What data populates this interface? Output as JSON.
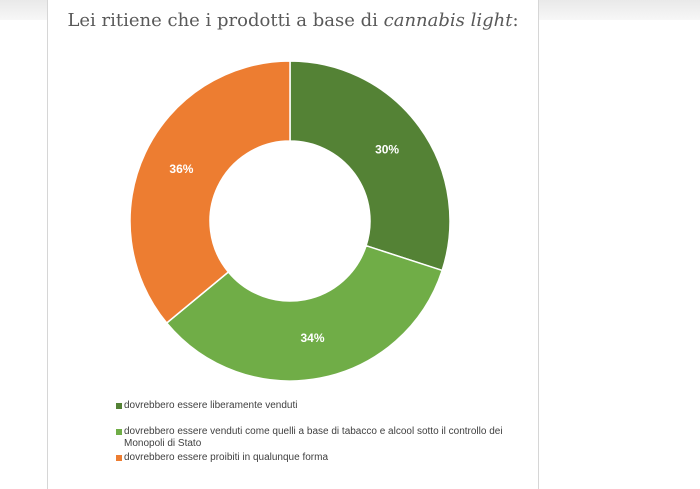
{
  "title": {
    "main": "Lei ritiene che i prodotti a base di ",
    "emphasis": "cannabis light",
    "end": ":"
  },
  "chart_data": {
    "type": "pie",
    "variant": "donut",
    "title": "Lei ritiene che i prodotti a base di cannabis light:",
    "legend_position": "bottom",
    "slices": [
      {
        "label": "dovrebbero essere liberamente venduti",
        "value": 30,
        "display": "30%",
        "color": "#548235"
      },
      {
        "label": "dovrebbero essere venduti come quelli a base di tabacco e alcool sotto il controllo dei Monopoli di Stato",
        "value": 34,
        "display": "34%",
        "color": "#70ad47"
      },
      {
        "label": "dovrebbero essere proibiti in qualunque forma",
        "value": 36,
        "display": "36%",
        "color": "#ed7d31"
      }
    ]
  }
}
